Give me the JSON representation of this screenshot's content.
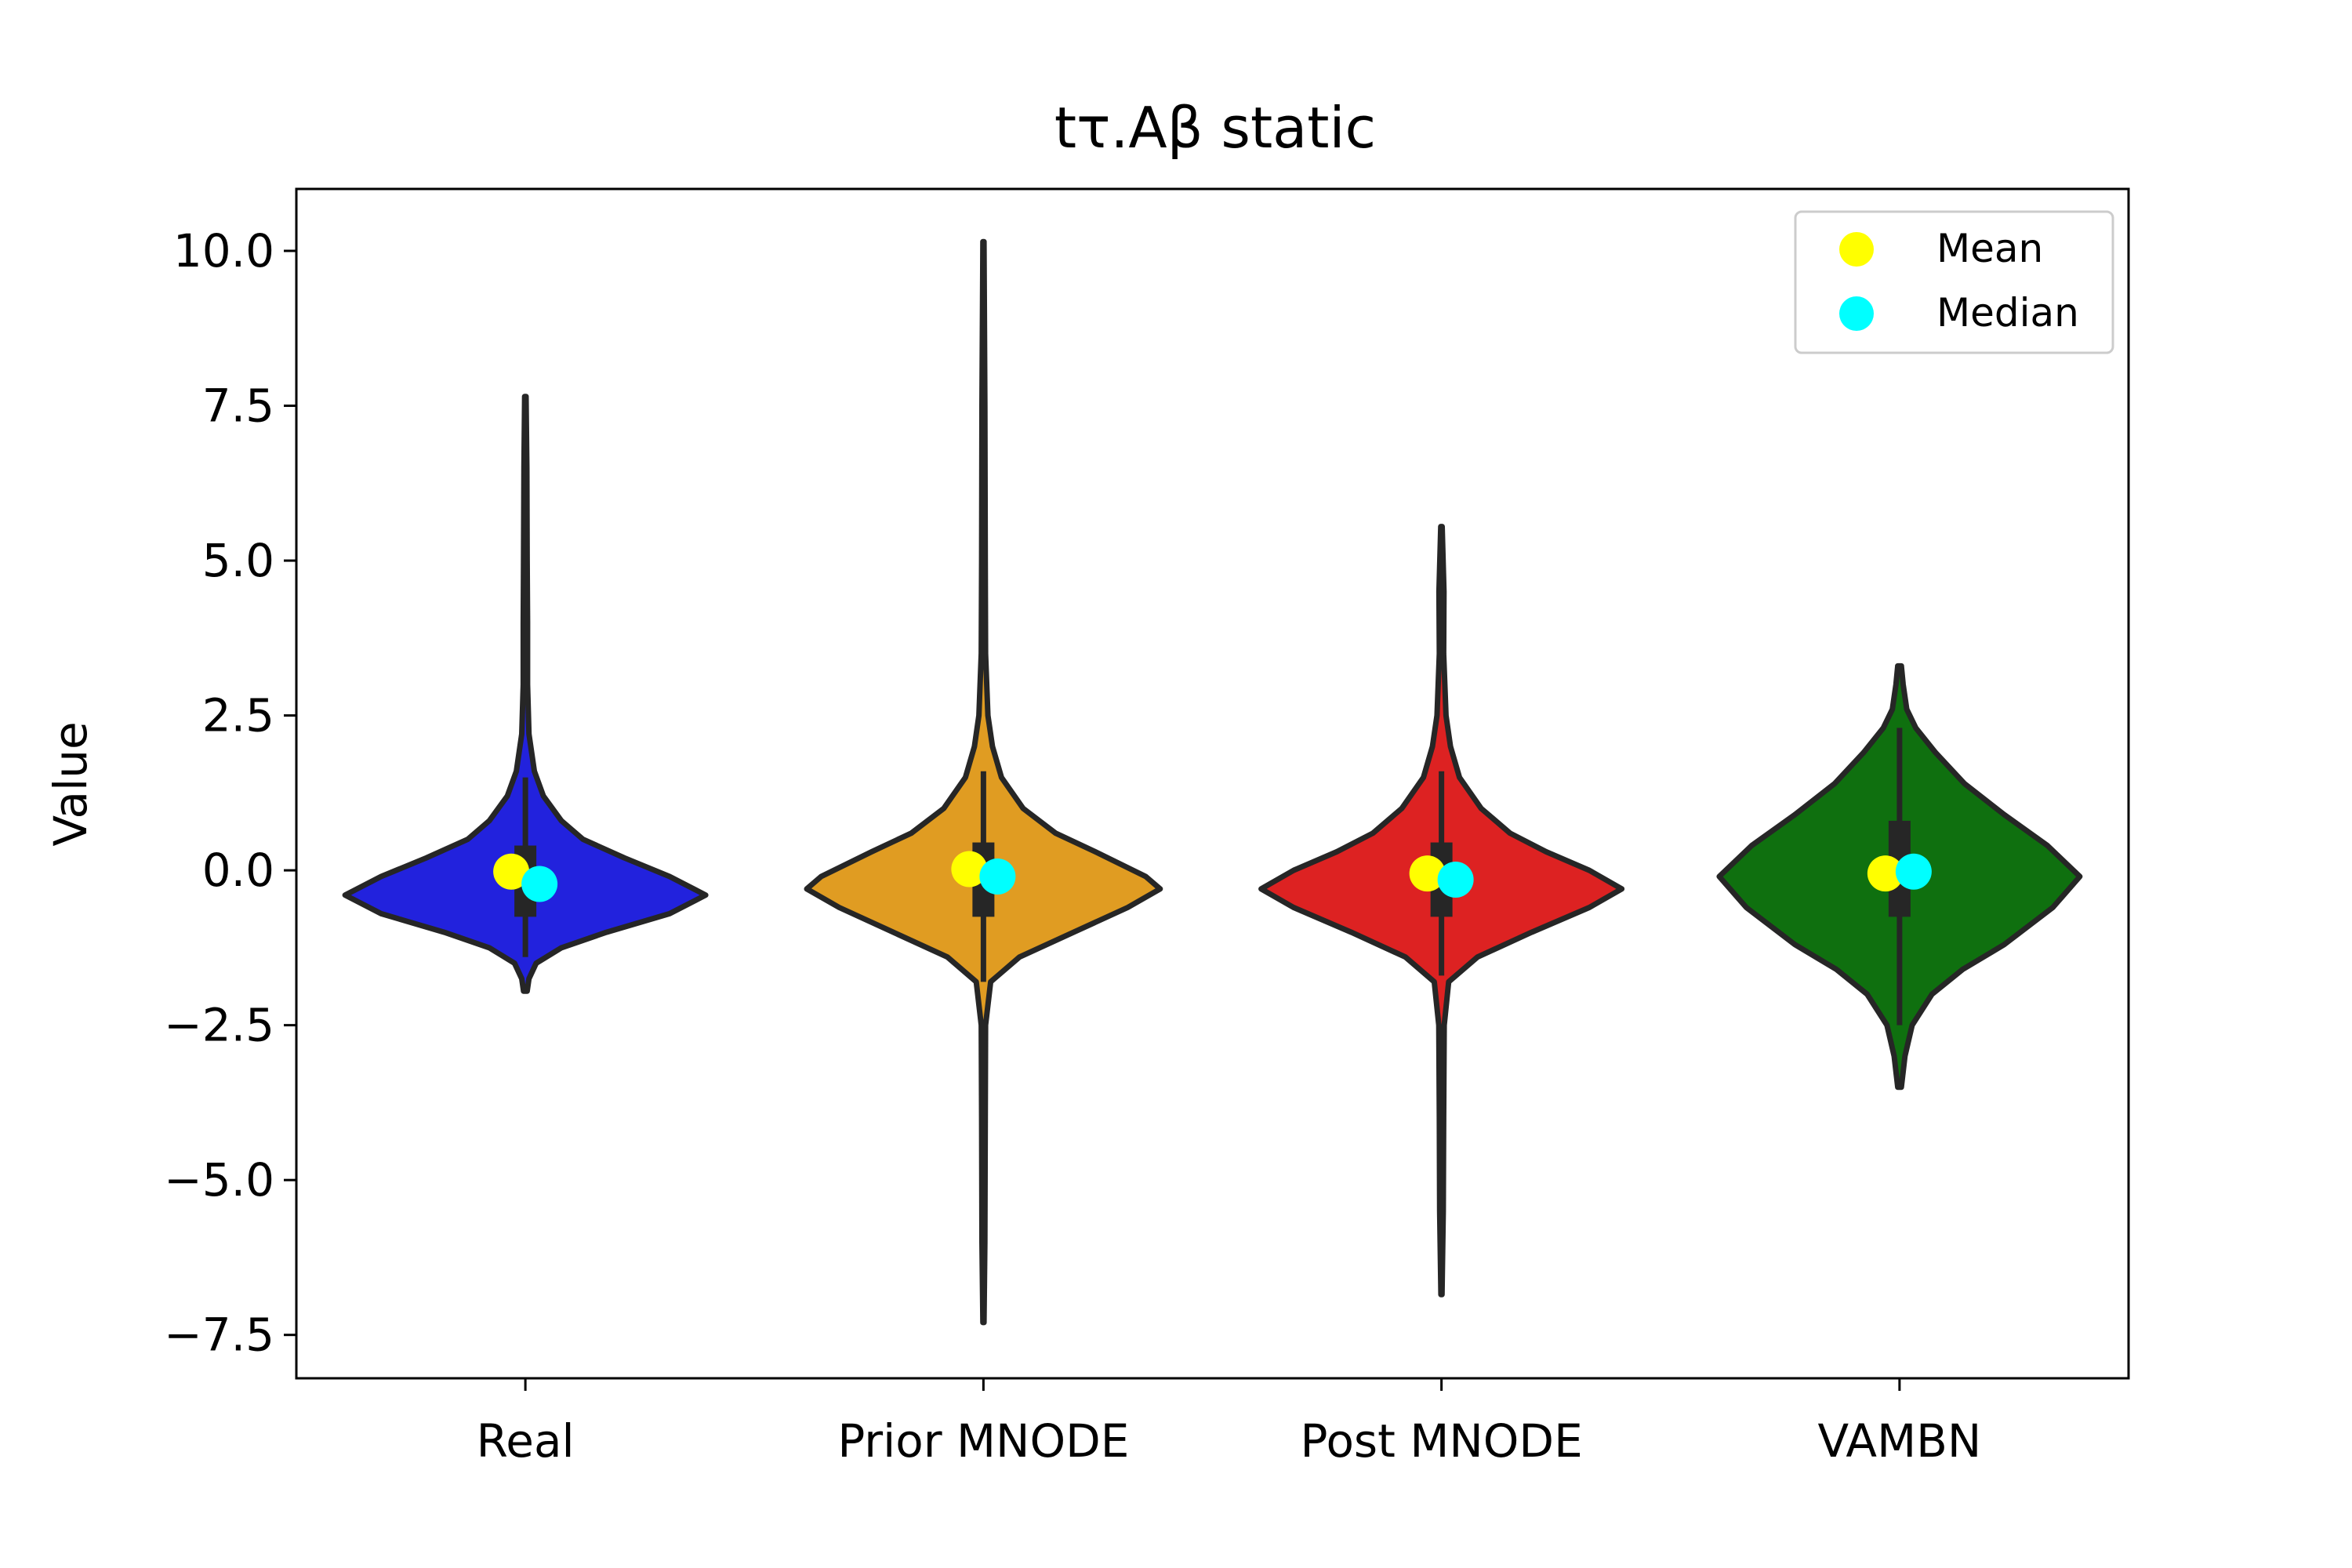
{
  "chart_data": {
    "type": "violin",
    "title": "tτ.Aβ static",
    "xlabel": "",
    "ylabel": "Value",
    "ylim": [
      -8.2,
      11.0
    ],
    "yticks": [
      10.0,
      7.5,
      5.0,
      2.5,
      0.0,
      -2.5,
      -5.0,
      -7.5
    ],
    "ytick_labels": [
      "10.0",
      "7.5",
      "5.0",
      "2.5",
      "0.0",
      "−2.5",
      "−5.0",
      "−7.5"
    ],
    "categories": [
      "Real",
      "Prior MNODE",
      "Post MNODE",
      "VAMBN"
    ],
    "legend": {
      "position": "top-right",
      "items": [
        {
          "label": "Mean",
          "color": "#ffff00"
        },
        {
          "label": "Median",
          "color": "#00ffff"
        }
      ]
    },
    "series": [
      {
        "category": "Real",
        "color": "#2222dd",
        "min": -1.95,
        "max": 7.65,
        "q1": -0.75,
        "median": -0.22,
        "q3": 0.4,
        "whisker_low": -1.4,
        "whisker_high": 1.5,
        "mean": -0.02,
        "density": [
          [
            -1.95,
            0.01
          ],
          [
            -1.75,
            0.02
          ],
          [
            -1.5,
            0.06
          ],
          [
            -1.25,
            0.2
          ],
          [
            -1.0,
            0.45
          ],
          [
            -0.7,
            0.8
          ],
          [
            -0.4,
            1.0
          ],
          [
            -0.1,
            0.8
          ],
          [
            0.2,
            0.55
          ],
          [
            0.5,
            0.32
          ],
          [
            0.8,
            0.2
          ],
          [
            1.2,
            0.1
          ],
          [
            1.6,
            0.05
          ],
          [
            2.2,
            0.02
          ],
          [
            3.0,
            0.012
          ],
          [
            4.0,
            0.012
          ],
          [
            5.0,
            0.01
          ],
          [
            6.5,
            0.008
          ],
          [
            7.65,
            0.004
          ]
        ]
      },
      {
        "category": "Prior MNODE",
        "color": "#e09c22",
        "min": -7.3,
        "max": 10.15,
        "q1": -0.75,
        "median": -0.1,
        "q3": 0.45,
        "whisker_low": -1.8,
        "whisker_high": 1.6,
        "mean": 0.02,
        "density": [
          [
            -7.3,
            0.003
          ],
          [
            -6.0,
            0.008
          ],
          [
            -4.0,
            0.01
          ],
          [
            -2.5,
            0.012
          ],
          [
            -1.8,
            0.04
          ],
          [
            -1.4,
            0.2
          ],
          [
            -1.0,
            0.5
          ],
          [
            -0.6,
            0.8
          ],
          [
            -0.3,
            0.98
          ],
          [
            -0.1,
            0.9
          ],
          [
            0.3,
            0.62
          ],
          [
            0.6,
            0.4
          ],
          [
            1.0,
            0.22
          ],
          [
            1.5,
            0.1
          ],
          [
            2.0,
            0.05
          ],
          [
            2.5,
            0.025
          ],
          [
            3.5,
            0.012
          ],
          [
            5.0,
            0.01
          ],
          [
            7.5,
            0.008
          ],
          [
            10.15,
            0.003
          ]
        ]
      },
      {
        "category": "Post MNODE",
        "color": "#dd2222",
        "min": -6.85,
        "max": 5.55,
        "q1": -0.75,
        "median": -0.15,
        "q3": 0.45,
        "whisker_low": -1.7,
        "whisker_high": 1.6,
        "mean": -0.05,
        "density": [
          [
            -6.85,
            0.003
          ],
          [
            -5.5,
            0.01
          ],
          [
            -4.0,
            0.012
          ],
          [
            -2.5,
            0.015
          ],
          [
            -1.8,
            0.04
          ],
          [
            -1.4,
            0.2
          ],
          [
            -1.0,
            0.5
          ],
          [
            -0.6,
            0.82
          ],
          [
            -0.3,
            1.0
          ],
          [
            0.0,
            0.82
          ],
          [
            0.3,
            0.58
          ],
          [
            0.6,
            0.38
          ],
          [
            1.0,
            0.22
          ],
          [
            1.5,
            0.1
          ],
          [
            2.0,
            0.05
          ],
          [
            2.5,
            0.025
          ],
          [
            3.5,
            0.012
          ],
          [
            4.5,
            0.014
          ],
          [
            5.55,
            0.004
          ]
        ]
      },
      {
        "category": "VAMBN",
        "color": "#0f700f",
        "min": -3.5,
        "max": 3.3,
        "q1": -0.75,
        "median": -0.02,
        "q3": 0.8,
        "whisker_low": -2.5,
        "whisker_high": 2.3,
        "mean": -0.05,
        "density": [
          [
            -3.5,
            0.01
          ],
          [
            -3.0,
            0.03
          ],
          [
            -2.5,
            0.07
          ],
          [
            -2.0,
            0.18
          ],
          [
            -1.6,
            0.35
          ],
          [
            -1.2,
            0.58
          ],
          [
            -0.6,
            0.85
          ],
          [
            -0.1,
            1.0
          ],
          [
            0.4,
            0.82
          ],
          [
            0.9,
            0.58
          ],
          [
            1.4,
            0.36
          ],
          [
            1.9,
            0.2
          ],
          [
            2.3,
            0.09
          ],
          [
            2.6,
            0.04
          ],
          [
            3.0,
            0.02
          ],
          [
            3.3,
            0.01
          ]
        ]
      }
    ]
  }
}
